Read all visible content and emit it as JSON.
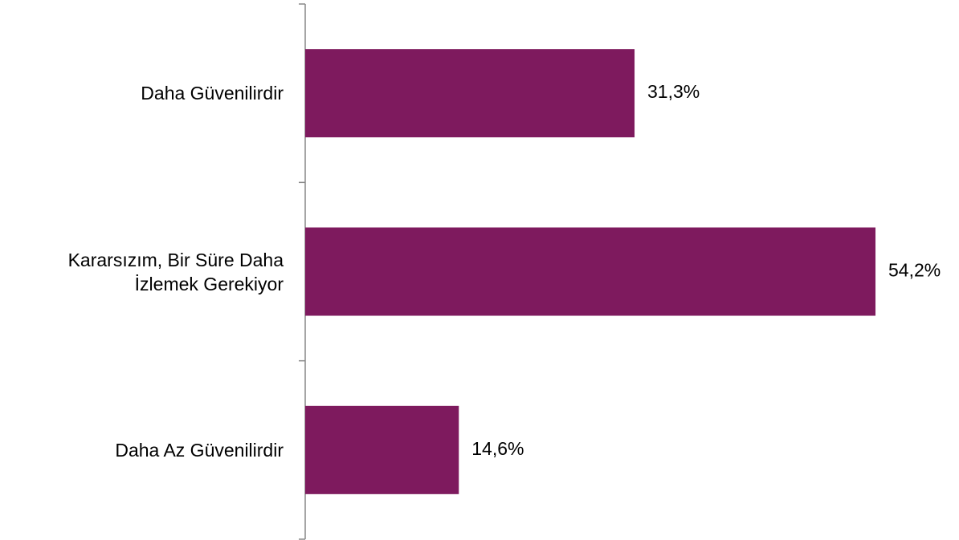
{
  "chart_data": {
    "type": "bar",
    "orientation": "horizontal",
    "categories": [
      "Daha Güvenilirdir",
      "Kararsızım, Bir Süre Daha İzlemek Gerekiyor",
      "Daha Az Güvenilirdir"
    ],
    "values": [
      31.3,
      54.2,
      14.6
    ],
    "value_labels": [
      "31,3%",
      "54,2%",
      "14,6%"
    ],
    "color": "#7e1a5e"
  }
}
